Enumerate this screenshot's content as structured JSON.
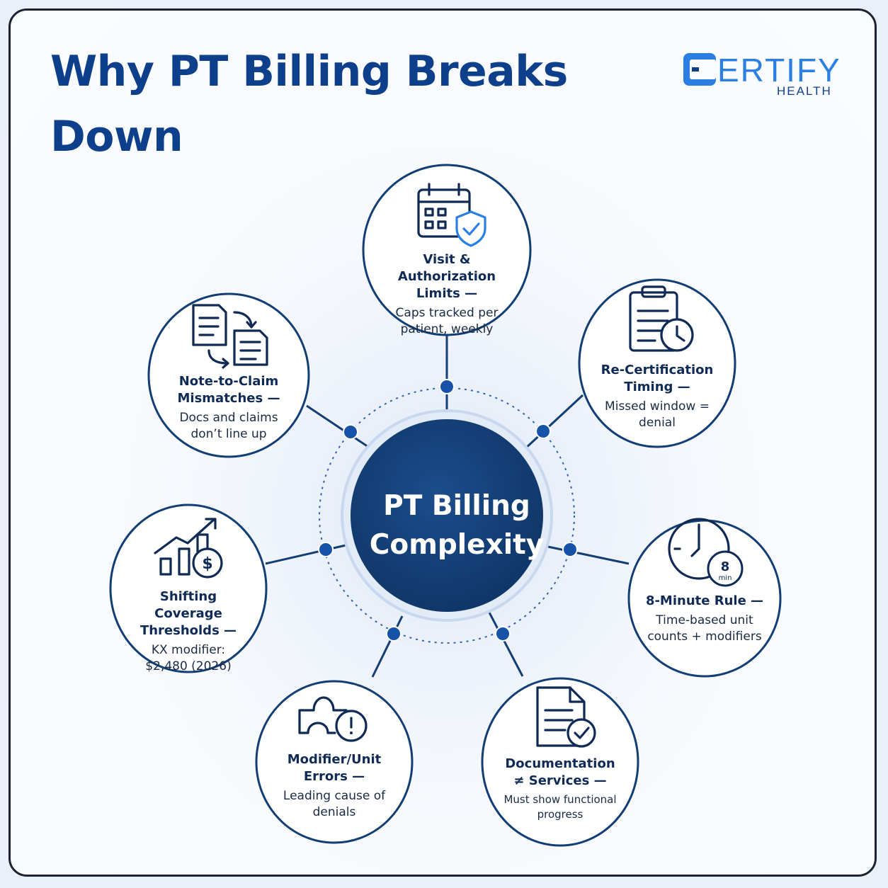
{
  "title": "Why PT Billing Breaks Down",
  "logo": {
    "word": "ERTIFY",
    "sub": "HEALTH",
    "brand_color": "#2b7fe3"
  },
  "center": {
    "line1": "PT Billing",
    "line2": "Complexity",
    "fill": "#123e74"
  },
  "nodes": [
    {
      "title": "Visit & Authorization Limits —",
      "desc": "Caps tracked per patient, weekly",
      "icon": "calendar-shield-icon"
    },
    {
      "title": "Re-Certification Timing —",
      "desc": "Missed window = denial",
      "icon": "clipboard-clock-icon"
    },
    {
      "title": "8-Minute Rule —",
      "desc": "Time-based unit counts + modifiers",
      "icon": "timer-8-min-icon",
      "badge_value": "8",
      "badge_unit": "min"
    },
    {
      "title": "Documentation ≠ Services —",
      "desc": "Must show functional progress",
      "icon": "document-check-icon"
    },
    {
      "title": "Modifier/Unit Errors —",
      "desc": "Leading cause of denials",
      "icon": "puzzle-alert-icon"
    },
    {
      "title": "Shifting Coverage Thresholds —",
      "desc": "KX modifier: $2,480 (2026)",
      "icon": "chart-dollar-icon"
    },
    {
      "title": "Note-to-Claim Mismatches —",
      "desc": "Docs and claims don’t line up",
      "icon": "docs-exchange-icon"
    }
  ],
  "colors": {
    "title": "#0d3f8a",
    "node_border": "#123e74",
    "connector": "#123e74",
    "dot": "#1552a8",
    "ring": "#2b64b4"
  }
}
